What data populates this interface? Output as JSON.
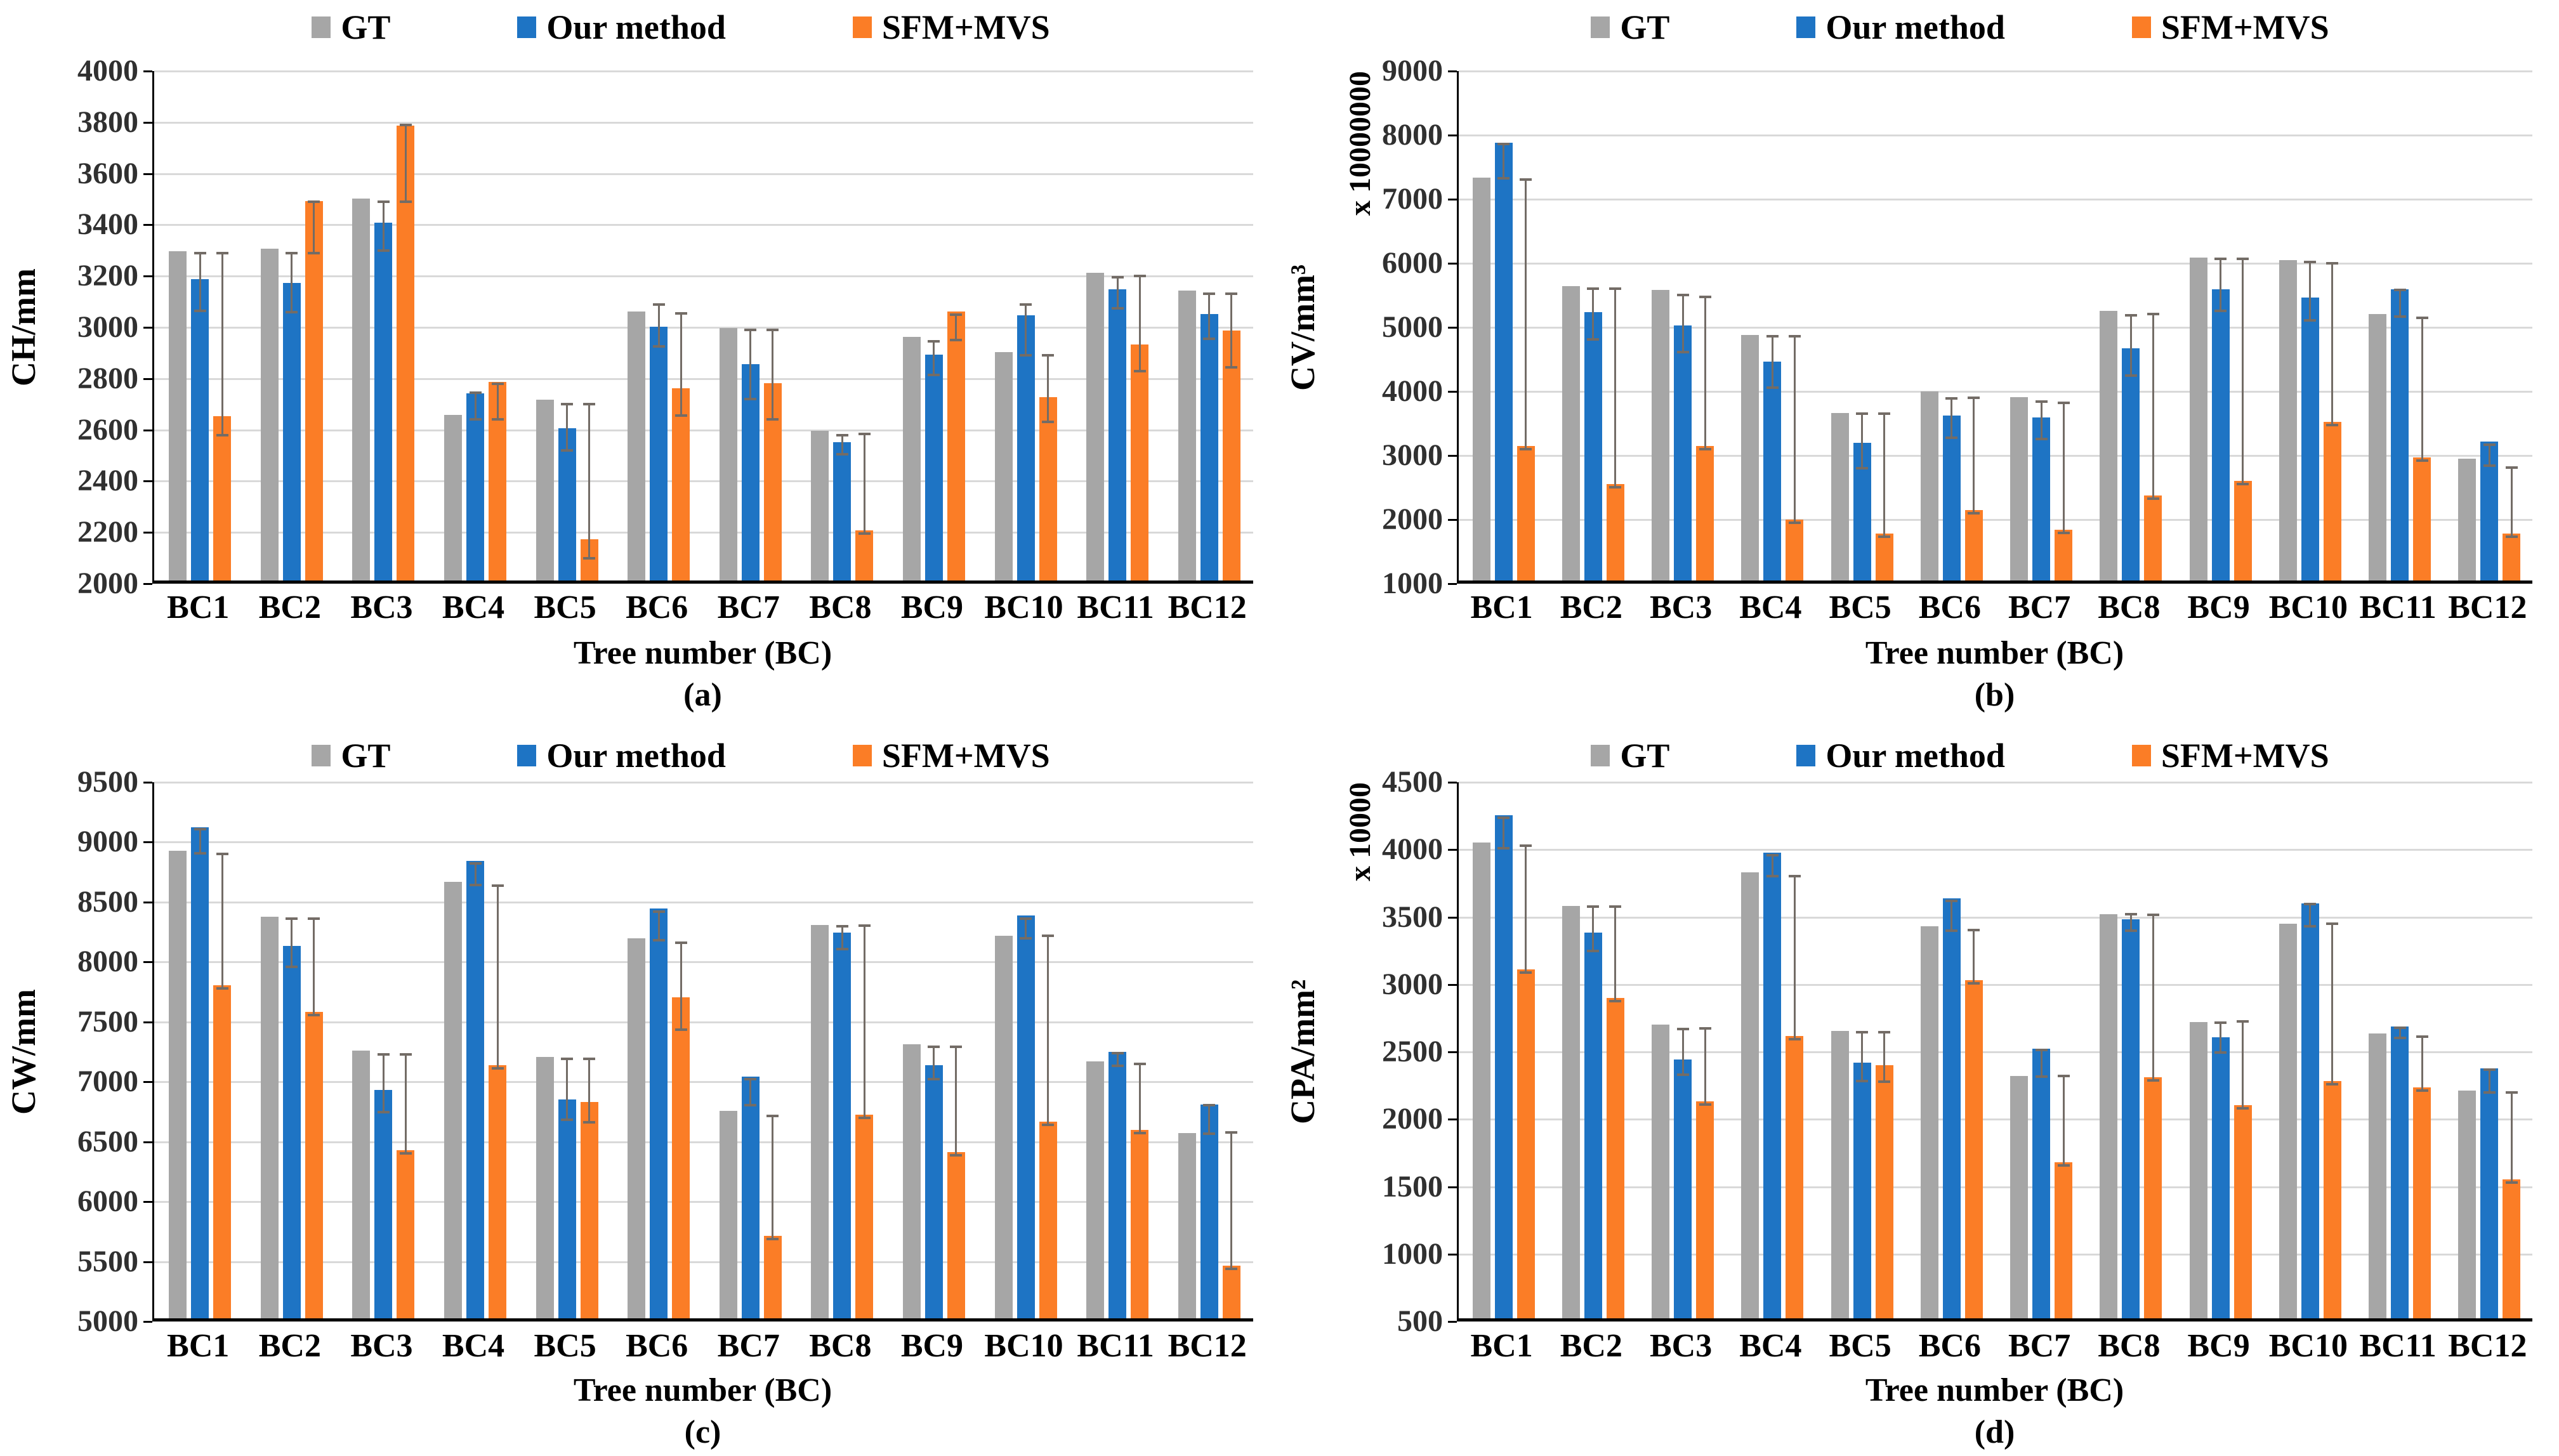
{
  "figure": {
    "xlabel": "Tree number (BC)",
    "categories": [
      "BC1",
      "BC2",
      "BC3",
      "BC4",
      "BC5",
      "BC6",
      "BC7",
      "BC8",
      "BC9",
      "BC10",
      "BC11",
      "BC12"
    ],
    "legend": [
      "GT",
      "Our method",
      "SFM+MVS"
    ],
    "colors": {
      "gt": "#a6a6a6",
      "our_method": "#1e74c4",
      "sfm_mvs": "#fb7d26",
      "gridline": "#d9d9d9",
      "axis": "#000000",
      "error_bar": "#736c66",
      "background": "#ffffff"
    }
  },
  "chart_data": [
    {
      "type": "bar",
      "panel_label": "(a)",
      "ylabel": "CH/mm",
      "unit_label": null,
      "xlabel": "Tree number (BC)",
      "ylim": [
        2000,
        4000
      ],
      "ytick_step": 200,
      "grid": true,
      "legend_position": "top",
      "categories": [
        "BC1",
        "BC2",
        "BC3",
        "BC4",
        "BC5",
        "BC6",
        "BC7",
        "BC8",
        "BC9",
        "BC10",
        "BC11",
        "BC12"
      ],
      "series": [
        {
          "name": "GT",
          "color": "#a6a6a6",
          "values": [
            3285,
            3295,
            3490,
            2645,
            2705,
            3050,
            2985,
            2585,
            2950,
            2890,
            3200,
            3130
          ],
          "errors": null
        },
        {
          "name": "Our method",
          "color": "#1e74c4",
          "values": [
            3175,
            3160,
            3395,
            2730,
            2595,
            2990,
            2845,
            2540,
            2880,
            3035,
            3135,
            3040
          ],
          "errors": [
            [
              3065,
              3290
            ],
            [
              3060,
              3290
            ],
            [
              3300,
              3490
            ],
            [
              2640,
              2745
            ],
            [
              2520,
              2700
            ],
            [
              2925,
              3090
            ],
            [
              2720,
              2990
            ],
            [
              2505,
              2580
            ],
            [
              2815,
              2945
            ],
            [
              2890,
              3090
            ],
            [
              3075,
              3195
            ],
            [
              2955,
              3130
            ]
          ]
        },
        {
          "name": "SFM+MVS",
          "color": "#fb7d26",
          "values": [
            2640,
            3480,
            3775,
            2775,
            2160,
            2750,
            2770,
            2195,
            3050,
            2715,
            2920,
            2975
          ],
          "errors": [
            [
              2580,
              3290
            ],
            [
              3290,
              3490
            ],
            [
              3490,
              3790
            ],
            [
              2640,
              2780
            ],
            [
              2100,
              2700
            ],
            [
              2655,
              3055
            ],
            [
              2640,
              2990
            ],
            [
              2195,
              2585
            ],
            [
              2950,
              3050
            ],
            [
              2630,
              2890
            ],
            [
              2830,
              3200
            ],
            [
              2845,
              3130
            ]
          ]
        }
      ]
    },
    {
      "type": "bar",
      "panel_label": "(b)",
      "ylabel": "CV/mm³",
      "unit_label": "x 10000000",
      "xlabel": "Tree number (BC)",
      "ylim": [
        1000,
        9000
      ],
      "ytick_step": 1000,
      "grid": true,
      "legend_position": "top",
      "categories": [
        "BC1",
        "BC2",
        "BC3",
        "BC4",
        "BC5",
        "BC6",
        "BC7",
        "BC8",
        "BC9",
        "BC10",
        "BC11",
        "BC12"
      ],
      "series": [
        {
          "name": "GT",
          "color": "#a6a6a6",
          "values": [
            7290,
            5590,
            5530,
            4830,
            3615,
            3950,
            3860,
            5210,
            6040,
            6000,
            5160,
            2900
          ],
          "errors": null
        },
        {
          "name": "Our method",
          "color": "#1e74c4",
          "values": [
            7830,
            5185,
            4985,
            4420,
            3150,
            3570,
            3540,
            4620,
            5545,
            5420,
            5545,
            3170
          ],
          "errors": [
            [
              7330,
              7860
            ],
            [
              4815,
              5600
            ],
            [
              4615,
              5505
            ],
            [
              4060,
              4860
            ],
            [
              2800,
              3650
            ],
            [
              3280,
              3890
            ],
            [
              3260,
              3840
            ],
            [
              4245,
              5185
            ],
            [
              5260,
              6070
            ],
            [
              5110,
              6020
            ],
            [
              5170,
              5580
            ],
            [
              2840,
              3170
            ]
          ]
        },
        {
          "name": "SFM+MVS",
          "color": "#fb7d26",
          "values": [
            3100,
            2505,
            3100,
            1950,
            1730,
            2100,
            1790,
            2330,
            2550,
            3480,
            2920,
            1730
          ],
          "errors": [
            [
              3100,
              7310
            ],
            [
              2505,
              5600
            ],
            [
              3100,
              5480
            ],
            [
              1950,
              4860
            ],
            [
              1730,
              3650
            ],
            [
              2100,
              3900
            ],
            [
              1790,
              3820
            ],
            [
              2330,
              5210
            ],
            [
              2550,
              6070
            ],
            [
              3480,
              6000
            ],
            [
              2920,
              5150
            ],
            [
              1730,
              2815
            ]
          ]
        }
      ]
    },
    {
      "type": "bar",
      "panel_label": "(c)",
      "ylabel": "CW/mm",
      "unit_label": null,
      "xlabel": "Tree number (BC)",
      "ylim": [
        5000,
        9500
      ],
      "ytick_step": 500,
      "grid": true,
      "legend_position": "top",
      "categories": [
        "BC1",
        "BC2",
        "BC3",
        "BC4",
        "BC5",
        "BC6",
        "BC7",
        "BC8",
        "BC9",
        "BC10",
        "BC11",
        "BC12"
      ],
      "series": [
        {
          "name": "GT",
          "color": "#a6a6a6",
          "values": [
            8900,
            8350,
            7235,
            8645,
            7180,
            8170,
            6730,
            8285,
            7285,
            8190,
            7145,
            6545
          ],
          "errors": null
        },
        {
          "name": "Our method",
          "color": "#1e74c4",
          "values": [
            9100,
            8110,
            6905,
            8815,
            6825,
            8420,
            7015,
            8220,
            7110,
            8360,
            7225,
            6785
          ],
          "errors": [
            [
              8905,
              9110
            ],
            [
              7960,
              8360
            ],
            [
              6745,
              7230
            ],
            [
              8640,
              8820
            ],
            [
              6685,
              7190
            ],
            [
              8180,
              8420
            ],
            [
              6805,
              7020
            ],
            [
              8110,
              8300
            ],
            [
              7025,
              7290
            ],
            [
              8200,
              8360
            ],
            [
              7135,
              7240
            ],
            [
              6565,
              6805
            ]
          ]
        },
        {
          "name": "SFM+MVS",
          "color": "#fb7d26",
          "values": [
            7780,
            7555,
            6405,
            7110,
            6805,
            7680,
            5690,
            6700,
            6385,
            6640,
            6575,
            5440
          ],
          "errors": [
            [
              7780,
              8900
            ],
            [
              7555,
              8360
            ],
            [
              6405,
              7230
            ],
            [
              7110,
              8635
            ],
            [
              6665,
              7190
            ],
            [
              7435,
              8160
            ],
            [
              5690,
              6715
            ],
            [
              6700,
              8305
            ],
            [
              6385,
              7295
            ],
            [
              6640,
              8220
            ],
            [
              6575,
              7150
            ],
            [
              5440,
              6580
            ]
          ]
        }
      ]
    },
    {
      "type": "bar",
      "panel_label": "(d)",
      "ylabel": "CPA/mm²",
      "unit_label": "x 10000",
      "xlabel": "Tree number (BC)",
      "ylim": [
        500,
        4500
      ],
      "ytick_step": 500,
      "grid": true,
      "legend_position": "top",
      "categories": [
        "BC1",
        "BC2",
        "BC3",
        "BC4",
        "BC5",
        "BC6",
        "BC7",
        "BC8",
        "BC9",
        "BC10",
        "BC11",
        "BC12"
      ],
      "series": [
        {
          "name": "GT",
          "color": "#a6a6a6",
          "values": [
            4030,
            3560,
            2680,
            3810,
            2630,
            3410,
            2300,
            3500,
            2700,
            3425,
            2615,
            2190
          ],
          "errors": null
        },
        {
          "name": "Our method",
          "color": "#1e74c4",
          "values": [
            4230,
            3360,
            2420,
            3955,
            2395,
            3615,
            2500,
            3460,
            2585,
            3580,
            2665,
            2355
          ],
          "errors": [
            [
              4010,
              4235
            ],
            [
              3250,
              3580
            ],
            [
              2330,
              2670
            ],
            [
              3805,
              3960
            ],
            [
              2285,
              2645
            ],
            [
              3400,
              3620
            ],
            [
              2315,
              2515
            ],
            [
              3400,
              3520
            ],
            [
              2495,
              2715
            ],
            [
              3430,
              3595
            ],
            [
              2605,
              2680
            ],
            [
              2200,
              2370
            ]
          ]
        },
        {
          "name": "SFM+MVS",
          "color": "#fb7d26",
          "values": [
            3090,
            2875,
            2110,
            2595,
            2380,
            3010,
            1660,
            2290,
            2080,
            2260,
            2215,
            1530
          ],
          "errors": [
            [
              3090,
              4030
            ],
            [
              2875,
              3580
            ],
            [
              2110,
              2675
            ],
            [
              2595,
              3805
            ],
            [
              2280,
              2645
            ],
            [
              3010,
              3405
            ],
            [
              1660,
              2320
            ],
            [
              2290,
              3515
            ],
            [
              2080,
              2725
            ],
            [
              2260,
              3450
            ],
            [
              2215,
              2615
            ],
            [
              1530,
              2200
            ]
          ]
        }
      ]
    }
  ]
}
